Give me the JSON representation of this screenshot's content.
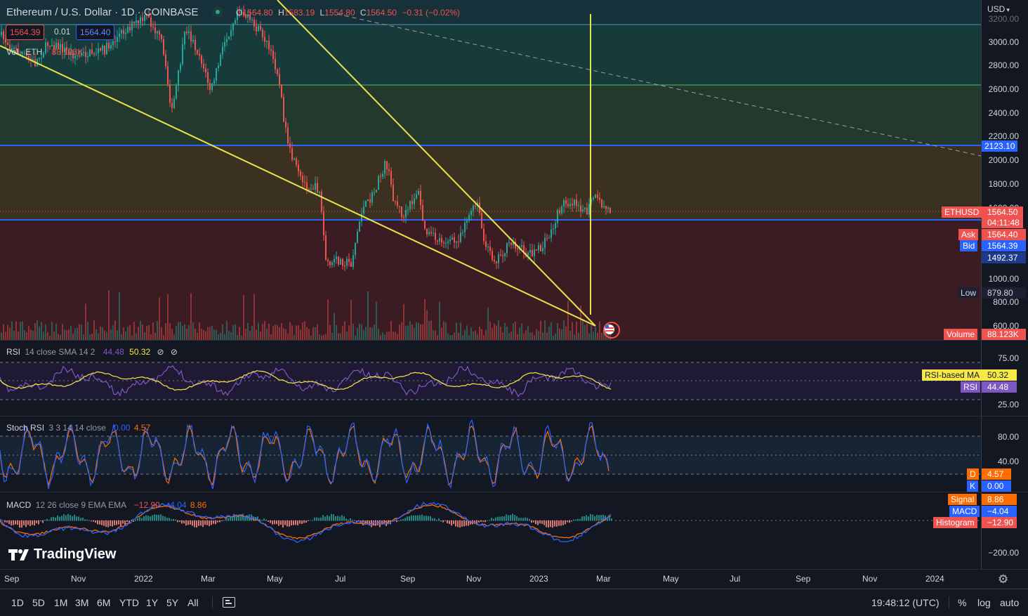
{
  "header": {
    "symbol": "Ethereum / U.S. Dollar · 1D · COINBASE",
    "o_label": "O",
    "o_value": "1564.80",
    "h_label": "H",
    "h_value": "1583.19",
    "l_label": "L",
    "l_value": "1554.80",
    "c_label": "C",
    "c_value": "1564.50",
    "change": "−0.31 (−0.02%)",
    "sell_price": "1564.39",
    "spread": "0.01",
    "buy_price": "1564.40",
    "volume_label": "Vol · ETH",
    "volume_value": "88.123K"
  },
  "price_scale": {
    "currency": "USD",
    "ticks": [
      "3200.00",
      "3000.00",
      "2800.00",
      "2600.00",
      "2400.00",
      "2200.00",
      "2000.00",
      "1800.00",
      "1600.00",
      "1000.00",
      "800.00",
      "600.00"
    ]
  },
  "price_tags": {
    "level_upper": "2123.10",
    "symbol_tag": "ETHUSD",
    "last_price": "1564.50",
    "countdown": "04:11:48",
    "ask_label": "Ask",
    "ask_value": "1564.40",
    "bid_label": "Bid",
    "bid_value": "1564.39",
    "level_lower": "1492.37",
    "low_label": "Low",
    "low_value": "879.80",
    "volume_label": "Volume",
    "volume_value": "88.123K"
  },
  "rsi": {
    "title": "RSI",
    "params": "14 close SMA 14 2",
    "value": "44.48",
    "ma_value": "50.32",
    "ticks": [
      "75.00",
      "25.00"
    ],
    "ma_tag": "RSI-based MA",
    "ma_tag_value": "50.32",
    "rsi_tag": "RSI",
    "rsi_tag_value": "44.48",
    "colors": {
      "rsi": "#7e57c2",
      "ma": "#f7e84a"
    }
  },
  "stoch": {
    "title": "Stoch RSI",
    "params": "3 3 14 14 close",
    "k_value": "0.00",
    "d_value": "4.57",
    "ticks": [
      "80.00",
      "40.00"
    ],
    "d_tag": "D",
    "d_tag_value": "4.57",
    "k_tag": "K",
    "k_tag_value": "0.00",
    "colors": {
      "k": "#2962ff",
      "d": "#ff6d00"
    }
  },
  "macd": {
    "title": "MACD",
    "params": "12 26 close 9 EMA EMA",
    "hist_value": "−12.90",
    "macd_value": "−4.04",
    "signal_value": "8.86",
    "ticks": [
      "−200.00"
    ],
    "signal_tag": "Signal",
    "signal_tag_value": "8.86",
    "macd_tag": "MACD",
    "macd_tag_value": "−4.04",
    "hist_tag": "Histogram",
    "hist_tag_value": "−12.90"
  },
  "time_axis": [
    "Sep",
    "Nov",
    "2022",
    "Mar",
    "May",
    "Jul",
    "Sep",
    "Nov",
    "2023",
    "Mar",
    "May",
    "Jul",
    "Sep",
    "Nov",
    "2024"
  ],
  "brand": "TradingView",
  "bottom_bar": {
    "timeframes": [
      "1D",
      "5D",
      "1M",
      "3M",
      "6M",
      "YTD",
      "1Y",
      "5Y",
      "All"
    ],
    "clock": "19:48:12 (UTC)",
    "percent": "%",
    "log": "log",
    "auto": "auto"
  },
  "colors": {
    "up": "#26a69a",
    "down": "#ef5350",
    "accent_blue": "#2962ff",
    "trend_yellow": "#e8e34a"
  }
}
